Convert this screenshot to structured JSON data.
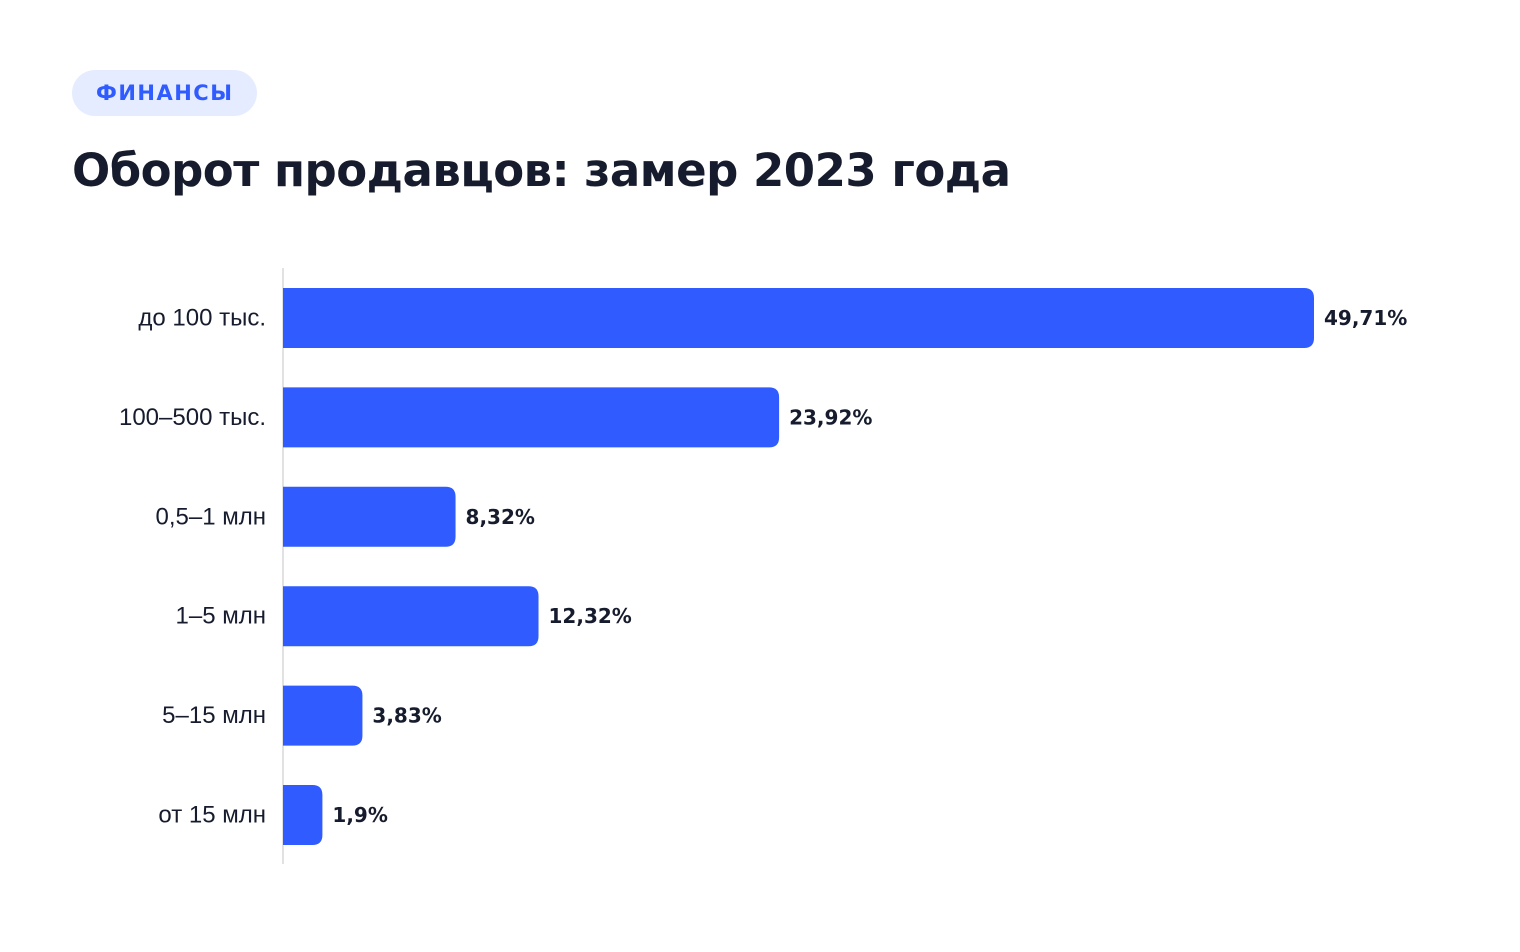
{
  "tag": {
    "label": "ФИНАНСЫ"
  },
  "title": "Оборот продавцов: замер 2023 года",
  "colors": {
    "bar": "#2f5bff",
    "tag_bg": "#e6ecff",
    "tag_text": "#2f5bff",
    "text": "#161c2d",
    "axis": "#d9d9d9"
  },
  "chart_data": {
    "type": "bar",
    "orientation": "horizontal",
    "title": "Оборот продавцов: замер 2023 года",
    "categories": [
      "до 100 тыс.",
      "100–500 тыс.",
      "0,5–1 млн",
      "1–5 млн",
      "5–15 млн",
      "от 15 млн"
    ],
    "values": [
      49.71,
      23.92,
      8.32,
      12.32,
      3.83,
      1.9
    ],
    "value_labels": [
      "49,71%",
      "23,92%",
      "8,32%",
      "12,32%",
      "3,83%",
      "1,9%"
    ],
    "unit": "%",
    "grid": false,
    "legend": "none"
  }
}
